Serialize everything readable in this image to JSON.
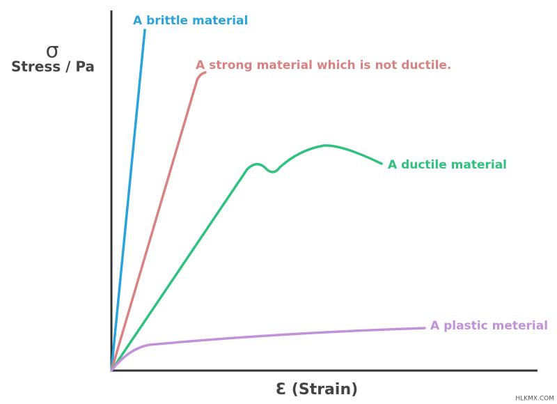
{
  "axes": {
    "y_symbol": "σ",
    "y_label": "Stress / Pa",
    "x_label": "Ɛ  (Strain)"
  },
  "curves": [
    {
      "label": "A brittle material"
    },
    {
      "label": "A strong material which is not ductile."
    },
    {
      "label": "A ductile material"
    },
    {
      "label": "A plastic meterial"
    }
  ],
  "watermark": "HLKMX.COM"
}
